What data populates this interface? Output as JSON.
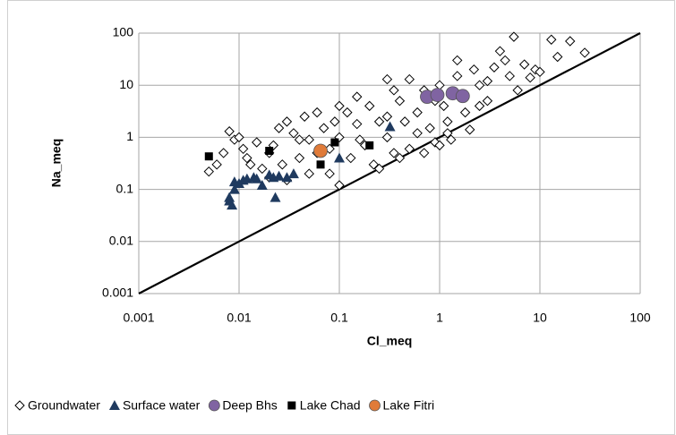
{
  "chart_data": {
    "type": "scatter",
    "x_label": "Cl_meq",
    "y_label": "Na_meq",
    "log_x": true,
    "log_y": true,
    "grid": true,
    "legend": "bottom",
    "xlim": [
      0.001,
      100
    ],
    "ylim": [
      0.001,
      100
    ],
    "xticks": [
      0.001,
      0.01,
      0.1,
      1,
      10,
      100
    ],
    "yticks": [
      0.001,
      0.01,
      0.1,
      1,
      10,
      100
    ],
    "line_1to1": {
      "color": "#000000",
      "x": [
        0.001,
        100
      ],
      "y": [
        0.001,
        100
      ]
    },
    "series": [
      {
        "name": "Groundwater",
        "marker": "diamond",
        "color": "#000000",
        "x": [
          0.005,
          0.006,
          0.007,
          0.008,
          0.009,
          0.01,
          0.011,
          0.012,
          0.013,
          0.015,
          0.017,
          0.02,
          0.022,
          0.025,
          0.027,
          0.03,
          0.03,
          0.035,
          0.04,
          0.045,
          0.05,
          0.05,
          0.06,
          0.07,
          0.08,
          0.09,
          0.1,
          0.1,
          0.12,
          0.13,
          0.15,
          0.18,
          0.2,
          0.22,
          0.25,
          0.3,
          0.3,
          0.35,
          0.4,
          0.45,
          0.5,
          0.5,
          0.6,
          0.7,
          0.8,
          0.9,
          1.0,
          1.1,
          1.2,
          1.3,
          1.5,
          1.6,
          1.8,
          2.0,
          2.2,
          2.5,
          3,
          3.5,
          4,
          4.5,
          5,
          5.5,
          6,
          7,
          8,
          9,
          10,
          13,
          15,
          20,
          28,
          0.02,
          0.04,
          0.06,
          0.16,
          0.25,
          0.4,
          0.7,
          1.0,
          0.35,
          0.15,
          0.1,
          0.08,
          1.5,
          2.5,
          0.6,
          0.9,
          3,
          1.2,
          0.3
        ],
        "y": [
          0.22,
          0.3,
          0.5,
          1.3,
          0.9,
          1.0,
          0.6,
          0.4,
          0.3,
          0.8,
          0.25,
          0.5,
          0.7,
          1.5,
          0.3,
          2.0,
          0.15,
          1.2,
          0.4,
          2.5,
          0.9,
          0.2,
          3.0,
          1.5,
          0.6,
          2.0,
          0.12,
          1.0,
          3.0,
          0.4,
          1.8,
          0.7,
          4.0,
          0.3,
          2.0,
          13,
          1.0,
          0.5,
          5,
          2,
          13,
          0.6,
          3,
          8,
          1.5,
          0.8,
          10,
          4,
          2,
          0.9,
          15,
          6,
          3,
          1.4,
          20,
          10,
          5,
          22,
          45,
          30,
          15,
          85,
          8,
          25,
          14,
          20,
          18,
          75,
          35,
          70,
          42,
          0.17,
          0.9,
          0.5,
          0.9,
          0.25,
          0.4,
          0.5,
          0.7,
          8,
          6,
          4,
          0.2,
          30,
          4,
          1.2,
          5,
          12,
          1.2,
          2.5
        ]
      },
      {
        "name": "Surface water",
        "marker": "triangle",
        "color": "#1f3a5f",
        "x": [
          0.008,
          0.008,
          0.0085,
          0.009,
          0.009,
          0.01,
          0.011,
          0.012,
          0.014,
          0.015,
          0.017,
          0.02,
          0.022,
          0.023,
          0.025,
          0.03,
          0.035,
          0.1,
          0.32
        ],
        "y": [
          0.06,
          0.07,
          0.05,
          0.1,
          0.14,
          0.13,
          0.15,
          0.16,
          0.17,
          0.16,
          0.12,
          0.19,
          0.17,
          0.07,
          0.18,
          0.17,
          0.2,
          0.4,
          1.6
        ]
      },
      {
        "name": "Deep Bhs",
        "marker": "circle",
        "color": "#8064a2",
        "x": [
          0.75,
          0.95,
          1.35,
          1.7
        ],
        "y": [
          6,
          6.5,
          7,
          6.2
        ]
      },
      {
        "name": "Lake Chad",
        "marker": "square",
        "color": "#000000",
        "x": [
          0.005,
          0.02,
          0.065,
          0.2,
          0.09
        ],
        "y": [
          0.43,
          0.55,
          0.3,
          0.7,
          0.8
        ]
      },
      {
        "name": "Lake Fitri",
        "marker": "circle",
        "color": "#e07b39",
        "x": [
          0.065
        ],
        "y": [
          0.55
        ]
      }
    ]
  }
}
